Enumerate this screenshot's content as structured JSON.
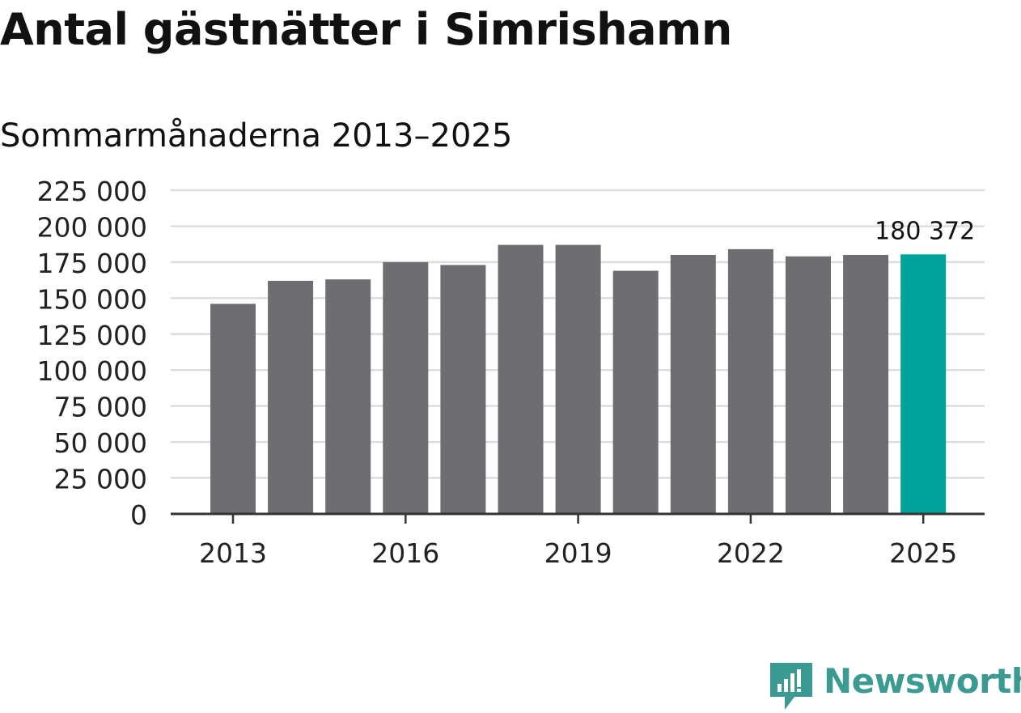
{
  "title": "Antal gästnätter i Simrishamn",
  "subtitle": "Sommarmånaderna 2013–2025",
  "chart_data": {
    "type": "bar",
    "categories": [
      "2013",
      "2014",
      "2015",
      "2016",
      "2017",
      "2018",
      "2019",
      "2020",
      "2021",
      "2022",
      "2023",
      "2024",
      "2025"
    ],
    "values": [
      146000,
      162000,
      163000,
      175000,
      173000,
      187000,
      187000,
      169000,
      180000,
      184000,
      179000,
      180000,
      180372
    ],
    "ylim": [
      0,
      225000
    ],
    "yticks": [
      0,
      25000,
      50000,
      75000,
      100000,
      125000,
      150000,
      175000,
      200000,
      225000
    ],
    "ytick_labels": [
      "0",
      "25 000",
      "50 000",
      "75 000",
      "100 000",
      "125 000",
      "150 000",
      "175 000",
      "200 000",
      "225 000"
    ],
    "xtick_labels": [
      "2013",
      "2016",
      "2019",
      "2022",
      "2025"
    ],
    "data_label": "180 372",
    "grid": true,
    "colors": {
      "bar": "#6e6d72",
      "highlight": "#00a39a",
      "grid": "#dddddd",
      "axis": "#333333"
    }
  },
  "brand": {
    "name": "Newsworthy",
    "color": "#3b9a92"
  }
}
